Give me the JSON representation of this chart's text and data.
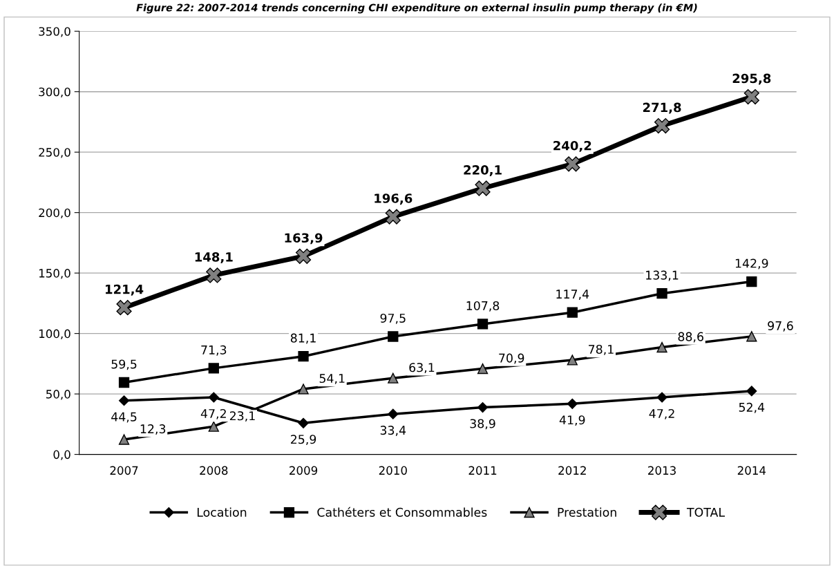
{
  "chart_data": {
    "type": "line",
    "title": "Figure 22: 2007-2014 trends concerning CHI expenditure on external insulin pump therapy (in €M)",
    "categories": [
      "2007",
      "2008",
      "2009",
      "2010",
      "2011",
      "2012",
      "2013",
      "2014"
    ],
    "series": [
      {
        "name": "Location",
        "color": "#000000",
        "marker": "diamond",
        "values": [
          44.5,
          47.2,
          25.9,
          33.4,
          38.9,
          41.9,
          47.2,
          52.4
        ],
        "value_labels": [
          "44,5",
          "47,2",
          "25,9",
          "33,4",
          "38,9",
          "41,9",
          "47,2",
          "52,4"
        ]
      },
      {
        "name": "Cathéters et Consommables",
        "color": "#000000",
        "marker": "square",
        "values": [
          59.5,
          71.3,
          81.1,
          97.5,
          107.8,
          117.4,
          133.1,
          142.9
        ],
        "value_labels": [
          "59,5",
          "71,3",
          "81,1",
          "97,5",
          "107,8",
          "117,4",
          "133,1",
          "142,9"
        ]
      },
      {
        "name": "Prestation",
        "color": "#000000",
        "marker": "triangle",
        "values": [
          12.3,
          23.1,
          54.1,
          63.1,
          70.9,
          78.1,
          88.6,
          97.6
        ],
        "value_labels": [
          "12,3",
          "23,1",
          "54,1",
          "63,1",
          "70,9",
          "78,1",
          "88,6",
          "97,6"
        ]
      },
      {
        "name": "TOTAL",
        "color": "#000000",
        "marker": "cross",
        "values": [
          121.4,
          148.1,
          163.9,
          196.6,
          220.1,
          240.2,
          271.8,
          295.8
        ],
        "value_labels": [
          "121,4",
          "148,1",
          "163,9",
          "196,6",
          "220,1",
          "240,2",
          "271,8",
          "295,8"
        ]
      }
    ],
    "ylim": [
      0,
      350
    ],
    "yticks": [
      {
        "value": 0,
        "label": "0,0"
      },
      {
        "value": 50,
        "label": "50,0"
      },
      {
        "value": 100,
        "label": "100,0"
      },
      {
        "value": 150,
        "label": "150,0"
      },
      {
        "value": 200,
        "label": "200,0"
      },
      {
        "value": 250,
        "label": "250,0"
      },
      {
        "value": 300,
        "label": "300,0"
      },
      {
        "value": 350,
        "label": "350,0"
      }
    ],
    "grid": "y",
    "legend": "bottom",
    "line_style": "solid"
  }
}
